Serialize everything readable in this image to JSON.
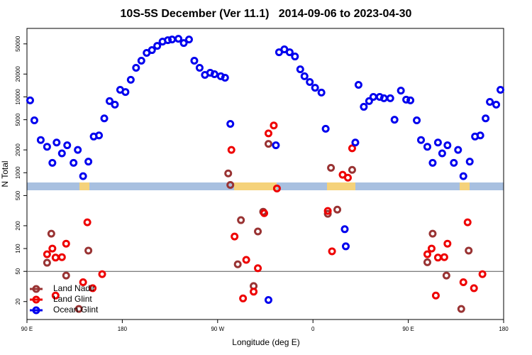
{
  "chart_data": {
    "type": "scatter",
    "title": "10S-5S December (Ver 11.1)   2014-09-06 to 2023-04-30",
    "x_label": "Longitude (deg E)",
    "y_label": "N Total",
    "xlim": [
      90,
      540
    ],
    "xticks": [
      {
        "value": 90,
        "label": "90 E"
      },
      180,
      {
        "value": 270,
        "label": "90 W"
      },
      {
        "value": 360,
        "label": "0"
      },
      {
        "value": 450,
        "label": "90 E"
      },
      {
        "value": 540,
        "label": "180"
      }
    ],
    "ylim": [
      11.6,
      80000
    ],
    "yticks": [
      20,
      50,
      100,
      200,
      500,
      1000,
      2000,
      5000,
      10000,
      20000,
      50000
    ],
    "log_y": true,
    "hline": 50,
    "legend": "bottom-left",
    "series": [
      {
        "name": "Land Nadir",
        "color": "#993333",
        "x": [
          109,
          113,
          127,
          139,
          148,
          289,
          292,
          304,
          308,
          313,
          280,
          282,
          318,
          374,
          377,
          383,
          397,
          468,
          473,
          486,
          500,
          507
        ],
        "values": [
          65,
          157,
          44,
          16,
          94,
          62,
          237,
          32,
          168,
          306,
          980,
          690,
          2400,
          287,
          1160,
          326,
          1090,
          66,
          157,
          44,
          16,
          94
        ]
      },
      {
        "name": "Land Glint",
        "color": "#ee0000",
        "x": [
          109,
          114,
          117,
          123,
          127,
          117,
          143,
          147,
          152,
          161,
          286,
          297,
          294,
          304,
          308,
          314,
          283,
          318,
          323,
          326,
          374,
          378,
          388,
          393,
          397,
          468,
          472,
          476,
          478,
          484,
          487,
          502,
          506,
          512,
          520
        ],
        "values": [
          84,
          100,
          76,
          77,
          116,
          24,
          36,
          222,
          30,
          46,
          144,
          71,
          22,
          27,
          55,
          293,
          2000,
          3300,
          4200,
          620,
          313,
          92,
          940,
          860,
          2100,
          84,
          100,
          24,
          76,
          77,
          116,
          36,
          222,
          30,
          46
        ]
      },
      {
        "name": "Ocean Glint",
        "color": "#0000ee",
        "x": [
          93,
          97,
          103,
          109,
          114,
          118,
          123,
          128,
          134,
          138,
          143,
          148,
          153,
          158,
          163,
          168,
          173,
          178,
          183,
          188,
          193,
          198,
          203,
          208,
          213,
          218,
          223,
          227,
          233,
          238,
          243,
          248,
          253,
          258,
          263,
          267,
          273,
          277,
          282,
          325,
          328,
          333,
          338,
          343,
          348,
          352,
          357,
          362,
          368,
          372,
          400,
          403,
          408,
          413,
          417,
          423,
          427,
          433,
          437,
          443,
          448,
          452,
          458,
          462,
          468,
          473,
          478,
          482,
          487,
          493,
          497,
          502,
          508,
          513,
          518,
          523,
          527,
          533,
          537,
          318,
          390,
          391
        ],
        "values": [
          9000,
          4900,
          2700,
          2200,
          1350,
          2500,
          1800,
          2300,
          1350,
          2000,
          900,
          1400,
          3000,
          3100,
          5200,
          8800,
          7900,
          12400,
          11600,
          16800,
          24200,
          30000,
          38000,
          41400,
          47100,
          53600,
          55900,
          57100,
          58400,
          51300,
          57100,
          30000,
          24200,
          19500,
          20800,
          19900,
          18700,
          17900,
          4400,
          2300,
          38800,
          42300,
          38800,
          34100,
          23100,
          18700,
          15700,
          13200,
          11400,
          3800,
          2500,
          14400,
          7400,
          8800,
          10000,
          10000,
          9600,
          9600,
          5000,
          12100,
          9200,
          9000,
          4900,
          2700,
          2200,
          1350,
          2500,
          1800,
          2300,
          1350,
          2000,
          900,
          1400,
          3000,
          3100,
          5200,
          8600,
          7900,
          12400,
          21,
          180,
          107
        ]
      }
    ]
  }
}
